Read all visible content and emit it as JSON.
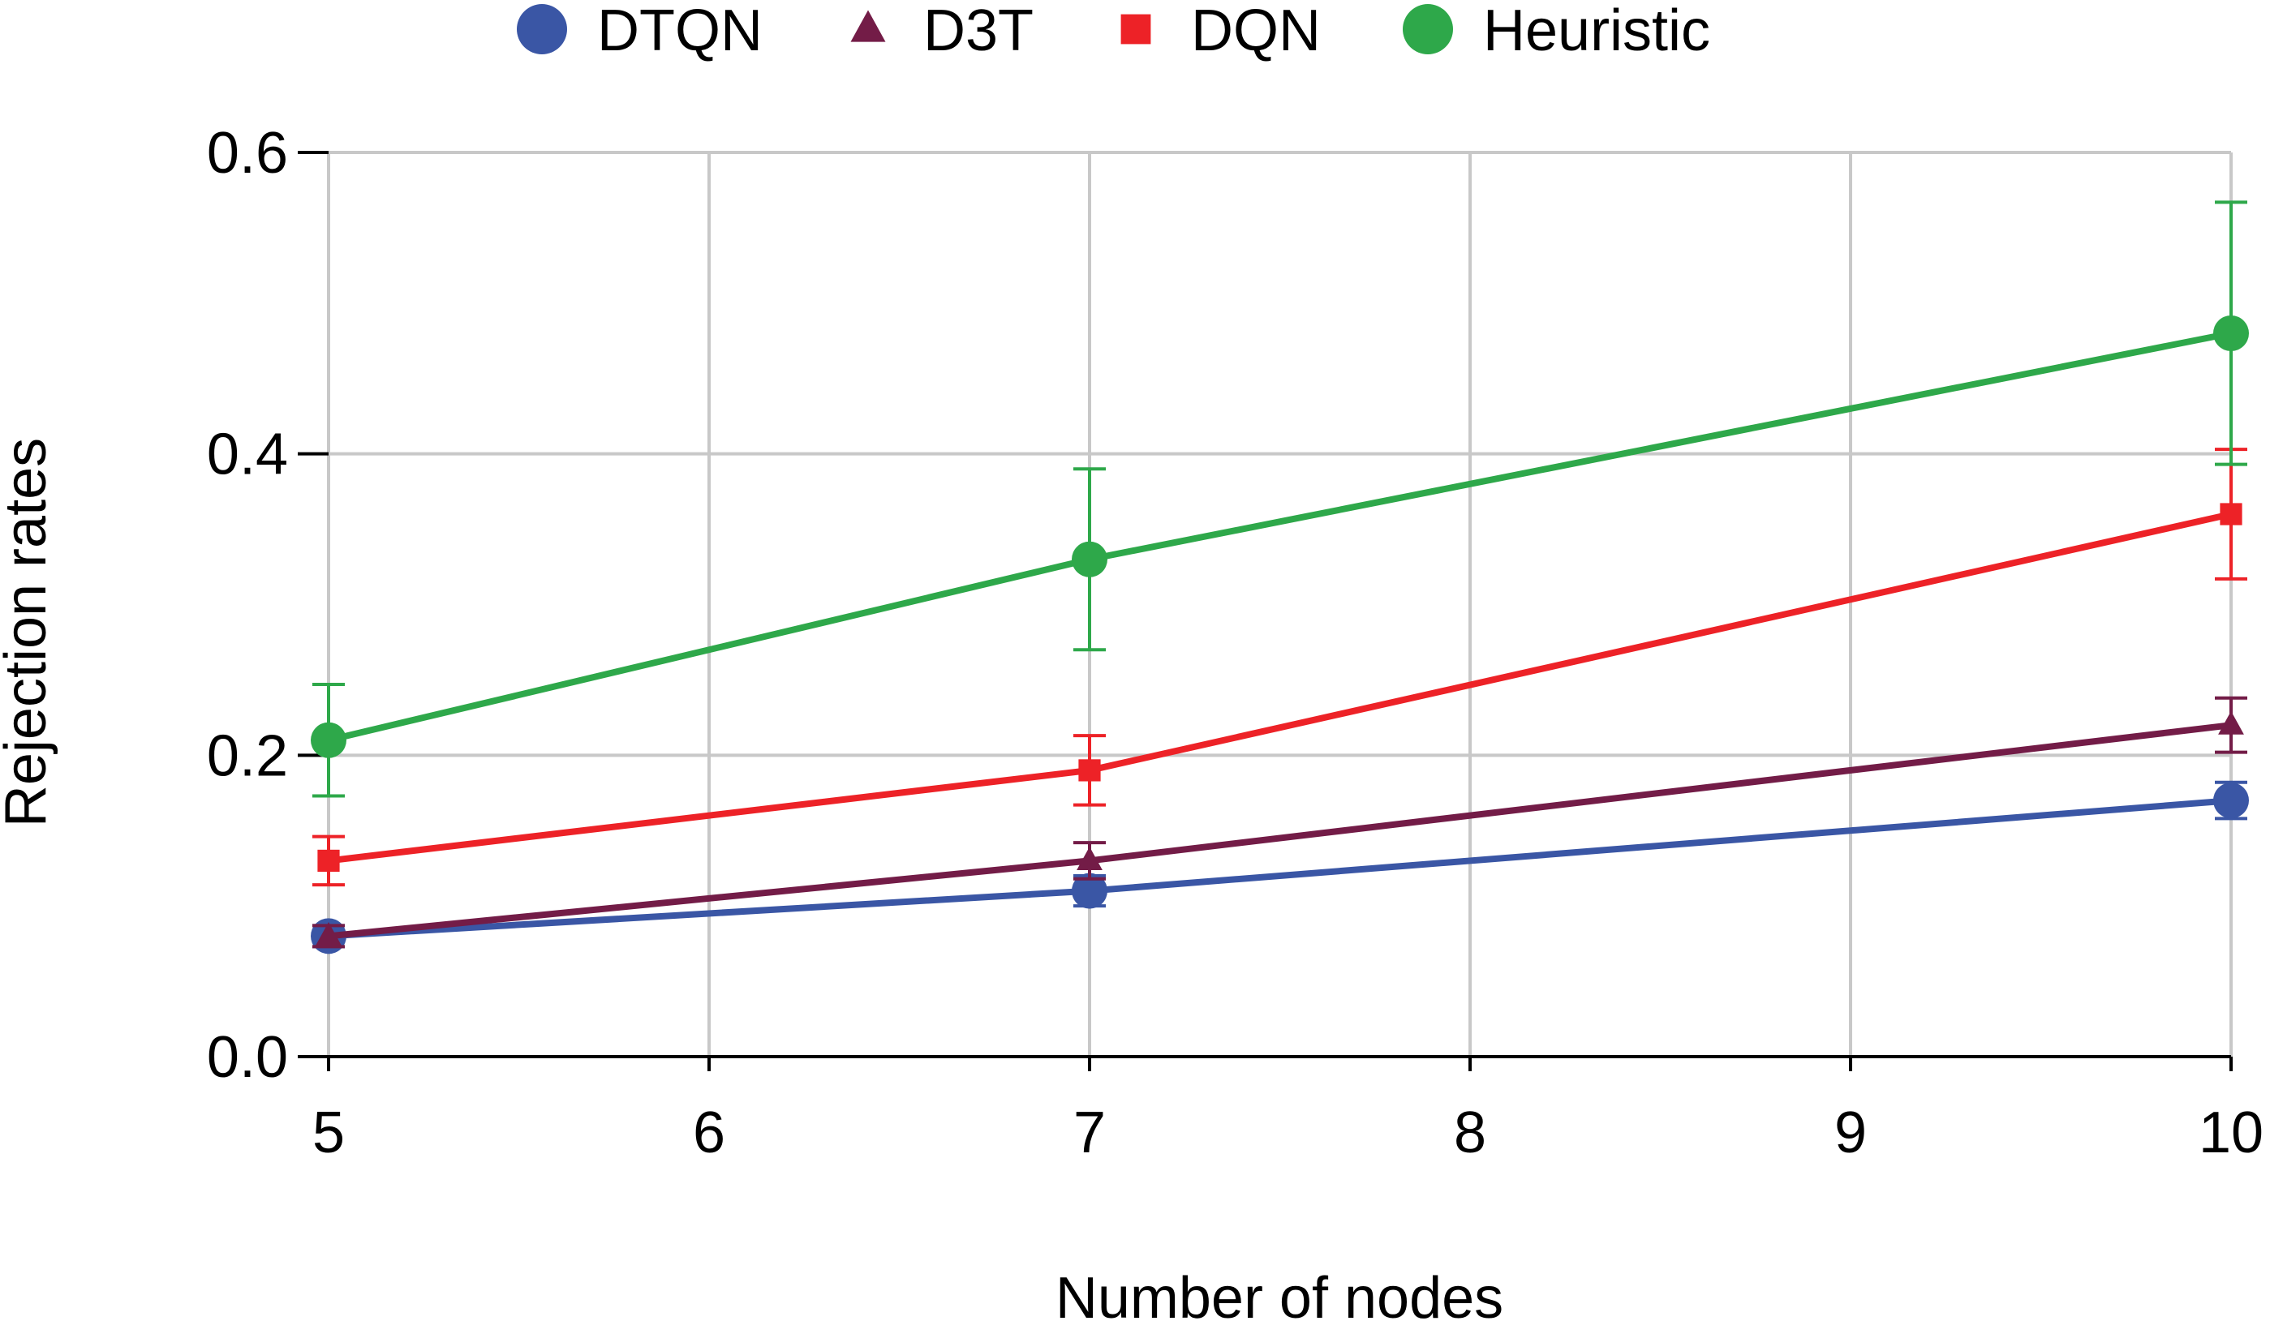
{
  "chart_data": {
    "type": "line",
    "title": "",
    "xlabel": "Number of nodes",
    "ylabel": "Rejection rates",
    "xlim": [
      5,
      10
    ],
    "ylim": [
      0,
      0.6
    ],
    "x_ticks": [
      5,
      6,
      7,
      8,
      9,
      10
    ],
    "y_ticks": [
      0.0,
      0.2,
      0.4,
      0.6
    ],
    "x_tick_labels": [
      "5",
      "6",
      "7",
      "8",
      "9",
      "10"
    ],
    "y_tick_labels": [
      "0.0",
      "0.2",
      "0.4",
      "0.6"
    ],
    "grid": true,
    "legend_position": "top",
    "x": [
      5,
      7,
      10
    ],
    "series": [
      {
        "name": "DTQN",
        "marker": "circle",
        "color": "#3a56a5",
        "values": [
          0.08,
          0.11,
          0.17
        ],
        "err": [
          0.007,
          0.01,
          0.012
        ]
      },
      {
        "name": "D3T",
        "marker": "triangle",
        "color": "#731c47",
        "values": [
          0.08,
          0.13,
          0.22
        ],
        "err": [
          0.007,
          0.012,
          0.018
        ]
      },
      {
        "name": "DQN",
        "marker": "square",
        "color": "#ed2227",
        "values": [
          0.13,
          0.19,
          0.36
        ],
        "err": [
          0.016,
          0.023,
          0.043
        ]
      },
      {
        "name": "Heuristic",
        "marker": "circle",
        "color": "#2ea84a",
        "values": [
          0.21,
          0.33,
          0.48
        ],
        "err": [
          0.037,
          0.06,
          0.087
        ]
      }
    ]
  }
}
